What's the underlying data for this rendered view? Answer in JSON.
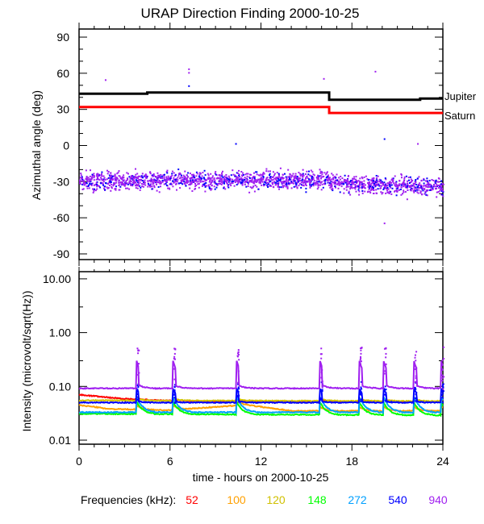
{
  "title": "URAP Direction Finding  2000-10-25",
  "chart_data": [
    {
      "type": "scatter",
      "title": "URAP Direction Finding  2000-10-25",
      "ylabel": "Azimuthal angle (deg)",
      "xlim": [
        0,
        24
      ],
      "ylim": [
        -90,
        90
      ],
      "yticks": [
        "90",
        "60",
        "30",
        "0",
        "-30",
        "-60",
        "-90"
      ],
      "yticks_values": [
        90,
        60,
        30,
        0,
        -30,
        -60,
        -90
      ],
      "lines": [
        {
          "name": "Jupiter",
          "color": "#000000",
          "steps": [
            [
              0,
              43
            ],
            [
              4.5,
              44
            ],
            [
              16.5,
              38
            ],
            [
              22.5,
              39
            ],
            [
              24,
              39
            ]
          ]
        },
        {
          "name": "Saturn",
          "color": "#ff0000",
          "steps": [
            [
              0,
              32
            ],
            [
              16.5,
              27
            ],
            [
              24,
              27
            ]
          ]
        }
      ],
      "scatter_cloud": {
        "colors": [
          "#a020f0",
          "#0000ff"
        ],
        "mean_deg": [
          [
            0,
            -29
          ],
          [
            8,
            -28
          ],
          [
            16,
            -28
          ],
          [
            18,
            -32
          ],
          [
            24,
            -33
          ]
        ],
        "spread_deg": 5,
        "outliers": [
          [
            1.7,
            55
          ],
          [
            7.2,
            64
          ],
          [
            7.2,
            61
          ],
          [
            7.2,
            50
          ],
          [
            10.3,
            2
          ],
          [
            16.1,
            56
          ],
          [
            19.5,
            62
          ],
          [
            20.1,
            6
          ],
          [
            22.3,
            2
          ],
          [
            20.1,
            -64
          ],
          [
            21.6,
            -44
          ]
        ]
      }
    },
    {
      "type": "line",
      "xlabel": "time - hours on 2000-10-25",
      "ylabel": "Intensity (microvolt/sqrt(Hz))",
      "yscale": "log",
      "xlim": [
        0,
        24
      ],
      "ylim": [
        0.01,
        10
      ],
      "xticks": [
        "0",
        "6",
        "12",
        "18",
        "24"
      ],
      "xticks_values": [
        0,
        6,
        12,
        18,
        24
      ],
      "yticks": [
        "10.00",
        "1.00",
        "0.10",
        "0.01"
      ],
      "yticks_values": [
        10,
        1,
        0.1,
        0.01
      ],
      "legend_title": "Frequencies (kHz):",
      "peaks_hours": [
        3.8,
        6.2,
        10.4,
        15.9,
        18.5,
        20.1,
        22.1,
        23.9
      ],
      "series": [
        {
          "name": "52",
          "color": "#ff0000",
          "baseline": [
            [
              0,
              0.07
            ],
            [
              2,
              0.062
            ],
            [
              4,
              0.056
            ],
            [
              8,
              0.053
            ],
            [
              24,
              0.052
            ]
          ]
        },
        {
          "name": "100",
          "color": "#ffa000",
          "baseline": [
            [
              0,
              0.045
            ],
            [
              2,
              0.038
            ],
            [
              6,
              0.036
            ],
            [
              11,
              0.045
            ],
            [
              14,
              0.035
            ],
            [
              24,
              0.035
            ]
          ]
        },
        {
          "name": "120",
          "color": "#d0c000",
          "baseline": [
            [
              0,
              0.055
            ],
            [
              24,
              0.053
            ]
          ]
        },
        {
          "name": "148",
          "color": "#00ff00",
          "baseline": [
            [
              0,
              0.031
            ],
            [
              24,
              0.029
            ]
          ]
        },
        {
          "name": "272",
          "color": "#00a0ff",
          "baseline": [
            [
              0,
              0.033
            ],
            [
              24,
              0.033
            ]
          ]
        },
        {
          "name": "540",
          "color": "#0000ff",
          "baseline": [
            [
              0,
              0.05
            ],
            [
              24,
              0.05
            ]
          ]
        },
        {
          "name": "940",
          "color": "#a020f0",
          "baseline": [
            [
              0,
              0.092
            ],
            [
              24,
              0.092
            ]
          ]
        }
      ]
    }
  ]
}
